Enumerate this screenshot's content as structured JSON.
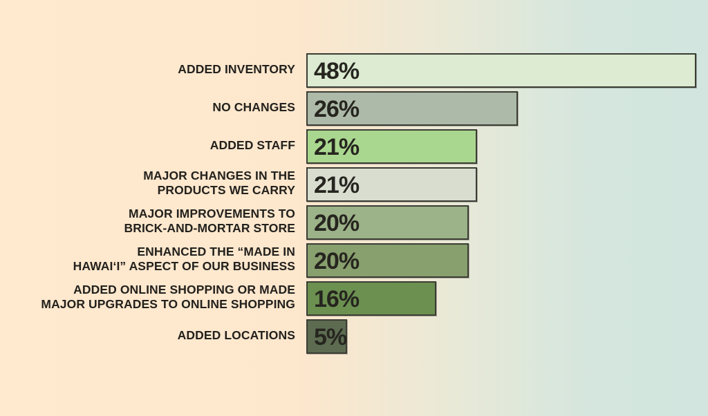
{
  "chart_data": {
    "type": "bar",
    "orientation": "horizontal",
    "title": "",
    "categories": [
      "ADDED INVENTORY",
      "NO CHANGES",
      "ADDED STAFF",
      "MAJOR CHANGES IN THE\nPRODUCTS WE CARRY",
      "MAJOR IMPROVEMENTS TO\nBRICK-AND-MORTAR STORE",
      "ENHANCED THE “MADE IN\nHAWAIʻI” ASPECT OF OUR BUSINESS",
      "ADDED ONLINE SHOPPING OR MADE\nMAJOR UPGRADES TO ONLINE SHOPPING",
      "ADDED LOCATIONS"
    ],
    "values": [
      48,
      26,
      21,
      21,
      20,
      20,
      16,
      5
    ],
    "value_labels": [
      "48%",
      "26%",
      "21%",
      "21%",
      "20%",
      "20%",
      "16%",
      "5%"
    ],
    "bar_colors": [
      "#dcebd1",
      "#adbaa9",
      "#aad78f",
      "#d8ddd0",
      "#9cb288",
      "#889f6e",
      "#6b9050",
      "#5d6c51"
    ],
    "bar_border_color": "#3b3c34",
    "text_color": "#23211d",
    "xlim": [
      0,
      48
    ],
    "grid": false,
    "legend": false,
    "background_gradient": [
      "#ffe9cf",
      "#d2e5de"
    ]
  }
}
